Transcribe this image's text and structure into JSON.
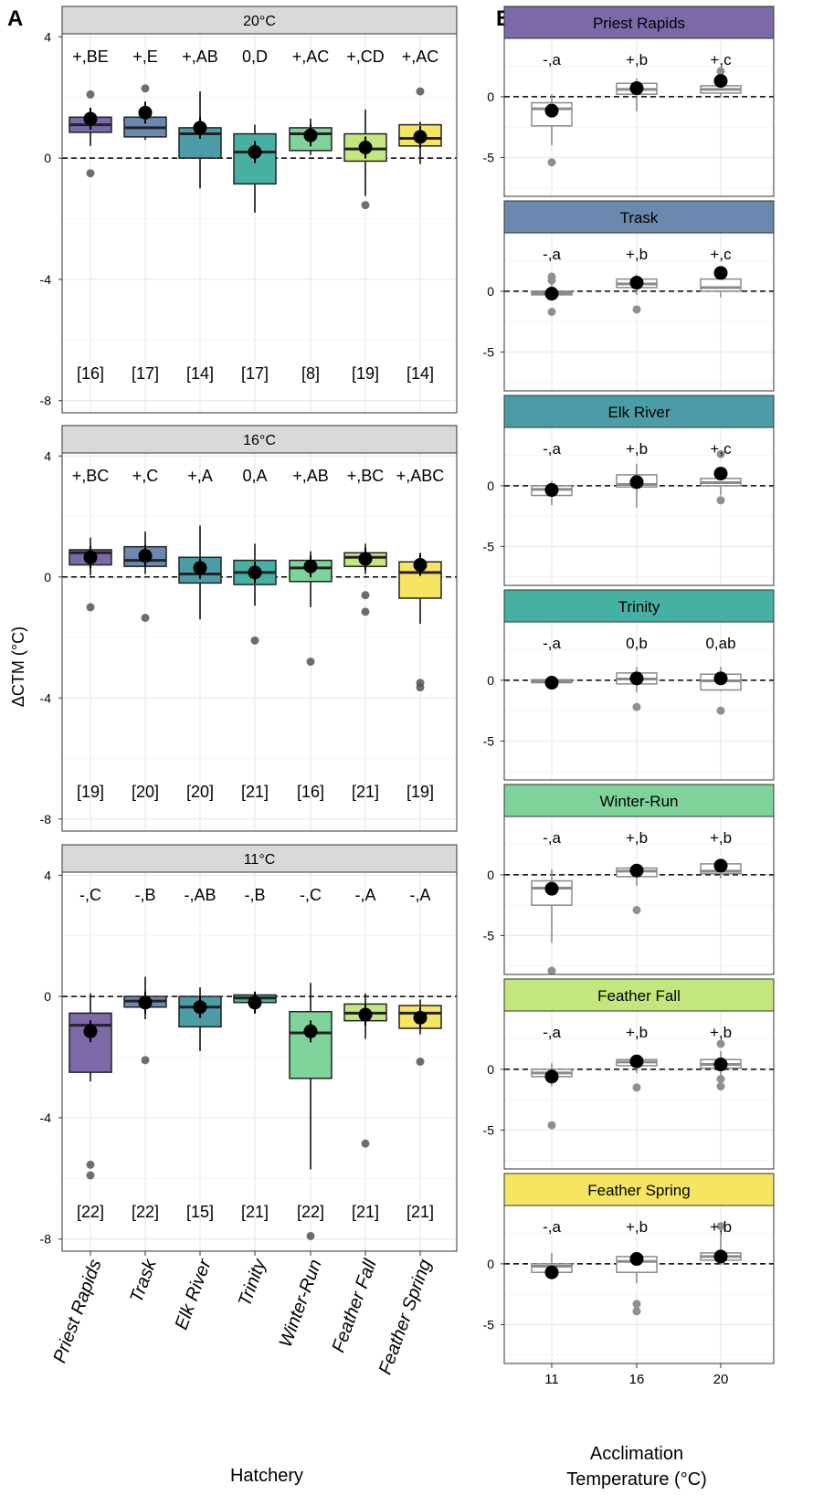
{
  "panel_labels": {
    "a": "A",
    "b": "B"
  },
  "colors": {
    "Priest Rapids": "#7B69A8",
    "Trask": "#6B88AE",
    "Elk River": "#4C9CA8",
    "Trinity": "#46B1A2",
    "Winter-Run": "#7ED39A",
    "Feather Fall": "#C3E77D",
    "Feather Spring": "#F5E560",
    "strip": "#D9D9D9",
    "strip_b": "#7B69A8"
  },
  "chart_data": [
    {
      "panel": "A",
      "type": "box",
      "ylabel": "ΔCTM (°C)",
      "xlabel": "Hatchery",
      "categories": [
        "Priest Rapids",
        "Trask",
        "Elk River",
        "Trinity",
        "Winter-Run",
        "Feather Fall",
        "Feather Spring"
      ],
      "ylim": [
        -8.4,
        4.1
      ],
      "yticks": [
        4,
        0,
        -4,
        -8
      ],
      "facets": [
        {
          "strip": "20°C",
          "letters": [
            "+,BE",
            "+,E",
            "+,AB",
            "0,D",
            "+,AC",
            "+,CD",
            "+,AC"
          ],
          "n": [
            "[16]",
            "[17]",
            "[14]",
            "[17]",
            "[8]",
            "[19]",
            "[14]"
          ],
          "boxes": [
            {
              "lo": 0.4,
              "q1": 0.85,
              "med": 1.1,
              "q3": 1.35,
              "hi": 1.6,
              "mean": 1.3,
              "outliers": [
                2.1,
                -0.5
              ]
            },
            {
              "lo": 0.6,
              "q1": 0.7,
              "med": 1.0,
              "q3": 1.35,
              "hi": 1.7,
              "mean": 1.5,
              "outliers": [
                2.3
              ]
            },
            {
              "lo": -1.0,
              "q1": 0.0,
              "med": 0.8,
              "q3": 1.0,
              "hi": 2.2,
              "mean": 1.0,
              "outliers": []
            },
            {
              "lo": -1.8,
              "q1": -0.85,
              "med": 0.2,
              "q3": 0.8,
              "hi": 1.1,
              "mean": 0.2,
              "outliers": []
            },
            {
              "lo": 0.1,
              "q1": 0.25,
              "med": 0.8,
              "q3": 1.0,
              "hi": 1.3,
              "mean": 0.75,
              "outliers": []
            },
            {
              "lo": -1.25,
              "q1": -0.1,
              "med": 0.3,
              "q3": 0.8,
              "hi": 1.6,
              "mean": 0.35,
              "outliers": [
                -1.55
              ]
            },
            {
              "lo": -0.2,
              "q1": 0.4,
              "med": 0.65,
              "q3": 1.1,
              "hi": 1.2,
              "mean": 0.7,
              "outliers": [
                2.2
              ]
            }
          ]
        },
        {
          "strip": "16°C",
          "letters": [
            "+,BC",
            "+,C",
            "+,A",
            "0,A",
            "+,AB",
            "+,BC",
            "+,ABC"
          ],
          "n": [
            "[19]",
            "[20]",
            "[20]",
            "[21]",
            "[16]",
            "[21]",
            "[19]"
          ],
          "boxes": [
            {
              "lo": 0.05,
              "q1": 0.4,
              "med": 0.8,
              "q3": 0.9,
              "hi": 1.3,
              "mean": 0.65,
              "outliers": [
                -1.0
              ]
            },
            {
              "lo": 0.1,
              "q1": 0.35,
              "med": 0.55,
              "q3": 1.0,
              "hi": 1.5,
              "mean": 0.7,
              "outliers": [
                -1.35
              ]
            },
            {
              "lo": -1.4,
              "q1": -0.2,
              "med": 0.1,
              "q3": 0.65,
              "hi": 1.7,
              "mean": 0.3,
              "outliers": []
            },
            {
              "lo": -0.95,
              "q1": -0.25,
              "med": 0.15,
              "q3": 0.55,
              "hi": 1.1,
              "mean": 0.15,
              "outliers": [
                -2.1
              ]
            },
            {
              "lo": -1.0,
              "q1": -0.15,
              "med": 0.3,
              "q3": 0.55,
              "hi": 0.85,
              "mean": 0.35,
              "outliers": [
                -2.8
              ]
            },
            {
              "lo": 0.1,
              "q1": 0.35,
              "med": 0.65,
              "q3": 0.8,
              "hi": 1.1,
              "mean": 0.6,
              "outliers": [
                -0.6,
                -1.15
              ]
            },
            {
              "lo": -1.55,
              "q1": -0.7,
              "med": 0.15,
              "q3": 0.5,
              "hi": 0.8,
              "mean": 0.4,
              "outliers": [
                -3.5,
                -3.65
              ]
            }
          ]
        },
        {
          "strip": "11°C",
          "letters": [
            "-,C",
            "-,B",
            "-,AB",
            "-,B",
            "-,C",
            "-,A",
            "-,A"
          ],
          "n": [
            "[22]",
            "[22]",
            "[15]",
            "[21]",
            "[22]",
            "[21]",
            "[21]"
          ],
          "boxes": [
            {
              "lo": -2.8,
              "q1": -2.5,
              "med": -0.95,
              "q3": -0.55,
              "hi": 0.1,
              "mean": -1.15,
              "outliers": [
                -5.55,
                -5.9
              ]
            },
            {
              "lo": -0.75,
              "q1": -0.35,
              "med": -0.15,
              "q3": 0.0,
              "hi": 0.65,
              "mean": -0.2,
              "outliers": [
                -2.1
              ]
            },
            {
              "lo": -1.8,
              "q1": -1.0,
              "med": -0.35,
              "q3": 0.0,
              "hi": 0.3,
              "mean": -0.35,
              "outliers": []
            },
            {
              "lo": -0.5,
              "q1": -0.2,
              "med": -0.05,
              "q3": 0.05,
              "hi": 0.1,
              "mean": -0.2,
              "outliers": []
            },
            {
              "lo": -5.7,
              "q1": -2.7,
              "med": -1.2,
              "q3": -0.5,
              "hi": 0.45,
              "mean": -1.15,
              "outliers": [
                -7.9
              ]
            },
            {
              "lo": -1.4,
              "q1": -0.8,
              "med": -0.55,
              "q3": -0.25,
              "hi": 0.1,
              "mean": -0.6,
              "outliers": [
                -4.85
              ]
            },
            {
              "lo": -1.25,
              "q1": -1.05,
              "med": -0.55,
              "q3": -0.3,
              "hi": -0.1,
              "mean": -0.7,
              "outliers": [
                -2.15
              ]
            }
          ]
        }
      ]
    },
    {
      "panel": "B",
      "type": "box",
      "ylabel": "",
      "xlabel": "Acclimation Temperature (°C)",
      "xlabel_lines": [
        "Acclimation",
        "Temperature (°C)"
      ],
      "categories": [
        "11",
        "16",
        "20"
      ],
      "ylim": [
        -8.2,
        4.8
      ],
      "yticks": [
        0,
        -5
      ],
      "facets": [
        {
          "strip": "Priest Rapids",
          "letters": [
            "-,a",
            "+,b",
            "+,c"
          ],
          "boxes": [
            {
              "lo": -4.0,
              "q1": -2.4,
              "med": -1.0,
              "q3": -0.5,
              "hi": 0.2,
              "mean": -1.15,
              "outliers": [
                -5.4
              ]
            },
            {
              "lo": -1.2,
              "q1": 0.2,
              "med": 0.6,
              "q3": 1.1,
              "hi": 1.5,
              "mean": 0.7,
              "outliers": []
            },
            {
              "lo": -0.1,
              "q1": 0.3,
              "med": 0.6,
              "q3": 0.9,
              "hi": 1.5,
              "mean": 1.3,
              "outliers": [
                2.1
              ]
            }
          ]
        },
        {
          "strip": "Trask",
          "letters": [
            "-,a",
            "+,b",
            "+,c"
          ],
          "boxes": [
            {
              "lo": -0.6,
              "q1": -0.3,
              "med": -0.15,
              "q3": 0.0,
              "hi": 0.6,
              "mean": -0.2,
              "outliers": [
                1.2,
                0.9,
                -1.7
              ]
            },
            {
              "lo": -0.3,
              "q1": 0.3,
              "med": 0.6,
              "q3": 1.0,
              "hi": 1.4,
              "mean": 0.7,
              "outliers": [
                -1.5
              ]
            },
            {
              "lo": -0.5,
              "q1": 0.0,
              "med": 0.3,
              "q3": 1.0,
              "hi": 1.4,
              "mean": 1.5,
              "outliers": []
            }
          ]
        },
        {
          "strip": "Elk River",
          "letters": [
            "-,a",
            "+,b",
            "+,c"
          ],
          "boxes": [
            {
              "lo": -1.6,
              "q1": -0.8,
              "med": -0.3,
              "q3": 0.0,
              "hi": 0.4,
              "mean": -0.35,
              "outliers": []
            },
            {
              "lo": -1.8,
              "q1": -0.1,
              "med": 0.1,
              "q3": 0.9,
              "hi": 1.8,
              "mean": 0.3,
              "outliers": []
            },
            {
              "lo": -0.8,
              "q1": 0.0,
              "med": 0.25,
              "q3": 0.6,
              "hi": 1.5,
              "mean": 1.0,
              "outliers": [
                2.6,
                -1.2
              ]
            }
          ]
        },
        {
          "strip": "Trinity",
          "letters": [
            "-,a",
            "0,b",
            "0,ab"
          ],
          "boxes": [
            {
              "lo": -0.5,
              "q1": -0.2,
              "med": -0.05,
              "q3": 0.05,
              "hi": 0.2,
              "mean": -0.2,
              "outliers": []
            },
            {
              "lo": -1.0,
              "q1": -0.3,
              "med": 0.1,
              "q3": 0.6,
              "hi": 1.1,
              "mean": 0.15,
              "outliers": [
                -2.2
              ]
            },
            {
              "lo": -0.9,
              "q1": -0.8,
              "med": -0.05,
              "q3": 0.5,
              "hi": 1.1,
              "mean": 0.15,
              "outliers": [
                -2.5
              ]
            }
          ]
        },
        {
          "strip": "Winter-Run",
          "letters": [
            "-,a",
            "+,b",
            "+,b"
          ],
          "boxes": [
            {
              "lo": -5.6,
              "q1": -2.5,
              "med": -1.1,
              "q3": -0.5,
              "hi": 0.45,
              "mean": -1.15,
              "outliers": [
                -7.9
              ]
            },
            {
              "lo": -0.9,
              "q1": -0.15,
              "med": 0.3,
              "q3": 0.55,
              "hi": 0.9,
              "mean": 0.35,
              "outliers": [
                -2.9
              ]
            },
            {
              "lo": -0.3,
              "q1": 0.1,
              "med": 0.3,
              "q3": 0.9,
              "hi": 1.3,
              "mean": 0.75,
              "outliers": []
            }
          ]
        },
        {
          "strip": "Feather Fall",
          "letters": [
            "-,a",
            "+,b",
            "+,b"
          ],
          "boxes": [
            {
              "lo": -1.4,
              "q1": -0.6,
              "med": -0.3,
              "q3": 0.0,
              "hi": 0.5,
              "mean": -0.6,
              "outliers": [
                -4.6
              ]
            },
            {
              "lo": -0.3,
              "q1": 0.3,
              "med": 0.6,
              "q3": 0.8,
              "hi": 1.1,
              "mean": 0.65,
              "outliers": [
                -1.5
              ]
            },
            {
              "lo": -0.5,
              "q1": 0.1,
              "med": 0.4,
              "q3": 0.8,
              "hi": 1.5,
              "mean": 0.4,
              "outliers": [
                2.1,
                -0.8,
                -1.4
              ]
            }
          ]
        },
        {
          "strip": "Feather Spring",
          "letters": [
            "-,a",
            "+,b",
            "+,b"
          ],
          "boxes": [
            {
              "lo": -1.0,
              "q1": -0.7,
              "med": -0.2,
              "q3": 0.0,
              "hi": 0.9,
              "mean": -0.7,
              "outliers": []
            },
            {
              "lo": -1.6,
              "q1": -0.7,
              "med": 0.2,
              "q3": 0.6,
              "hi": 0.8,
              "mean": 0.4,
              "outliers": [
                -3.3,
                -3.9
              ]
            },
            {
              "lo": -0.1,
              "q1": 0.3,
              "med": 0.6,
              "q3": 0.9,
              "hi": 2.5,
              "mean": 0.6,
              "outliers": [
                3.1
              ]
            }
          ]
        }
      ]
    }
  ]
}
